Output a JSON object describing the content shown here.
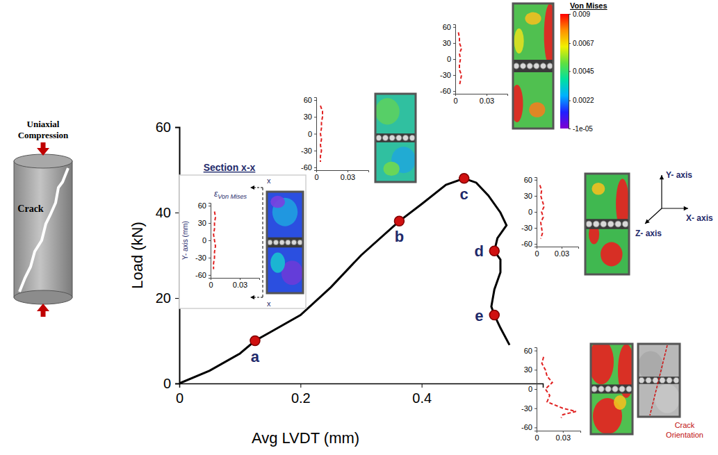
{
  "chart_data": [
    {
      "type": "line",
      "x_label": "Avg LVDT (mm)",
      "y_label": "Load (kN)",
      "color": "#000000",
      "x": [
        0,
        0.05,
        0.1,
        0.125,
        0.15,
        0.2,
        0.25,
        0.3,
        0.363,
        0.4,
        0.44,
        0.47,
        0.49,
        0.51,
        0.53,
        0.54,
        0.525,
        0.52,
        0.53,
        0.53,
        0.52,
        0.515,
        0.52,
        0.53,
        0.545
      ],
      "y": [
        0,
        3,
        7,
        10,
        12,
        16,
        22.5,
        30,
        38,
        42,
        46.5,
        48,
        47,
        44,
        40,
        37,
        34,
        31,
        29,
        26,
        22,
        18,
        16,
        13,
        9
      ],
      "xlim": [
        0,
        0.6
      ],
      "ylim": [
        0,
        60
      ],
      "xticks": [
        0,
        0.2,
        0.4
      ],
      "yticks": [
        0,
        20,
        40,
        60
      ],
      "annotations": [
        {
          "text": "a",
          "x": 0.125,
          "y": 10
        },
        {
          "text": "b",
          "x": 0.363,
          "y": 38
        },
        {
          "text": "c",
          "x": 0.47,
          "y": 48
        },
        {
          "text": "d",
          "x": 0.52,
          "y": 31
        },
        {
          "text": "e",
          "x": 0.52,
          "y": 16
        }
      ]
    },
    {
      "type": "line",
      "title": "Section x-x",
      "x_label": "εVon Mises",
      "y_label": "Y- axis (mm)",
      "section_marks": [
        "x",
        "x"
      ],
      "color": "#e02020",
      "line_style": "dashed",
      "x": [
        0.004,
        0.005,
        0.004,
        0.004,
        0.003,
        0.004,
        0.005,
        0.004,
        0.004,
        0.003,
        0.003
      ],
      "y": [
        50,
        40,
        30,
        20,
        10,
        0,
        -10,
        -20,
        -30,
        -40,
        -50
      ],
      "xlim": [
        0,
        0.05
      ],
      "ylim": [
        -65,
        65
      ],
      "xticks": [
        0,
        0.03
      ],
      "yticks": [
        60,
        30,
        0,
        -30,
        -60
      ]
    },
    {
      "type": "line",
      "color": "#e02020",
      "line_style": "dashed",
      "x": [
        0.004,
        0.006,
        0.006,
        0.005,
        0.005,
        0.004,
        0.005,
        0.004,
        0.005,
        0.004,
        0.004
      ],
      "y": [
        50,
        40,
        30,
        20,
        10,
        0,
        -10,
        -20,
        -30,
        -40,
        -50
      ],
      "xlim": [
        0,
        0.05
      ],
      "ylim": [
        -65,
        65
      ],
      "xticks": [
        0,
        0.03
      ],
      "yticks": [
        60,
        30,
        0,
        -30,
        -60
      ]
    },
    {
      "type": "line",
      "color": "#e02020",
      "line_style": "dashed",
      "x": [
        0.003,
        0.004,
        0.004,
        0.006,
        0.004,
        0.005,
        0.004,
        0.004,
        0.006,
        0.005,
        0.004
      ],
      "y": [
        50,
        40,
        30,
        20,
        10,
        0,
        -10,
        -20,
        -30,
        -40,
        -50
      ],
      "xlim": [
        0,
        0.05
      ],
      "ylim": [
        -65,
        65
      ],
      "xticks": [
        0,
        0.03
      ],
      "yticks": [
        60,
        30,
        0,
        -30,
        -60
      ]
    },
    {
      "type": "line",
      "color": "#e02020",
      "line_style": "dashed",
      "x": [
        0.004,
        0.006,
        0.005,
        0.007,
        0.009,
        0.006,
        0.008,
        0.005,
        0.006,
        0.007,
        0.005
      ],
      "y": [
        50,
        40,
        30,
        20,
        10,
        0,
        -10,
        -20,
        -30,
        -40,
        -50
      ],
      "xlim": [
        0,
        0.05
      ],
      "ylim": [
        -65,
        65
      ],
      "xticks": [
        0,
        0.03
      ],
      "yticks": [
        60,
        30,
        0,
        -30,
        -60
      ]
    },
    {
      "type": "line",
      "color": "#e02020",
      "line_style": "dashed",
      "x": [
        0.008,
        0.006,
        0.01,
        0.012,
        0.018,
        0.01,
        0.015,
        0.012,
        0.03,
        0.045,
        0.03,
        0.028
      ],
      "y": [
        50,
        40,
        30,
        20,
        10,
        0,
        -10,
        -20,
        -30,
        -35,
        -40,
        -45
      ],
      "xlim": [
        0,
        0.05
      ],
      "ylim": [
        -65,
        65
      ],
      "xticks": [
        0,
        0.03
      ],
      "yticks": [
        60,
        30,
        0,
        -30,
        -60
      ]
    }
  ],
  "colorbar": {
    "title": "Von Mises",
    "range": [
      -1e-05,
      0.009
    ],
    "ticks": [
      0.009,
      0.0067,
      0.0045,
      0.0022,
      {
        "value": -1e-05,
        "label": "-1e-05"
      }
    ]
  },
  "schematic": {
    "title": "Uniaxial Compression",
    "crack_label": "Crack"
  },
  "axes_triad": {
    "y": "Y- axis",
    "x": "X- axis",
    "z": "Z- axis"
  },
  "crack_photo_label": "Crack Orientation"
}
